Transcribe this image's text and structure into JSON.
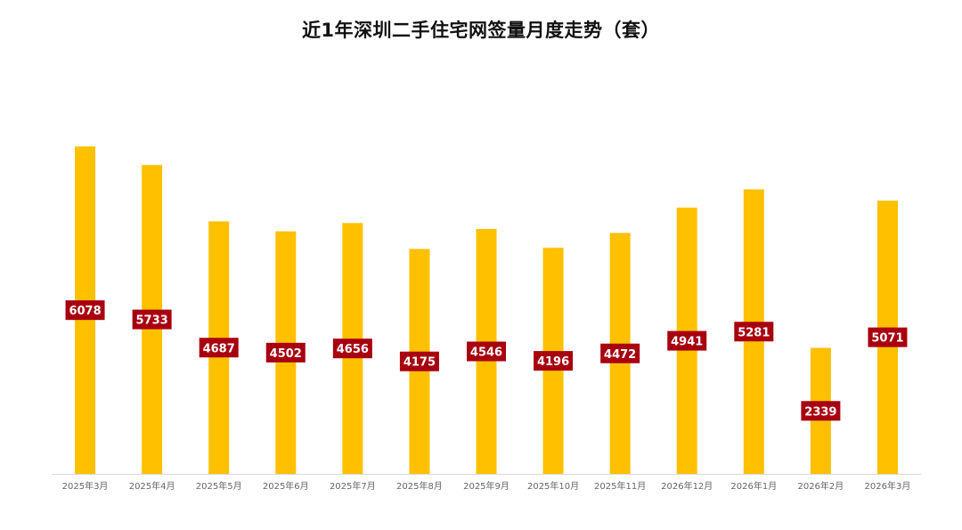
{
  "title": "近1年深圳二手住宅网签量月度走势（套）",
  "colors": {
    "bar": "#FFC000",
    "bar_edge": "#F2B200",
    "label_bg": "#A8000F",
    "label_text": "#FFFFFF",
    "axis": "#D9D9D9",
    "tick_text": "#666666"
  },
  "chart_data": {
    "type": "bar",
    "title": "近1年深圳二手住宅网签量月度走势（套）",
    "xlabel": "",
    "ylabel": "",
    "categories": [
      "2025年3月",
      "2025年4月",
      "2025年5月",
      "2025年6月",
      "2025年7月",
      "2025年8月",
      "2025年9月",
      "2025年10月",
      "2025年11月",
      "2026年12月",
      "2026年1月",
      "2026年2月",
      "2026年3月"
    ],
    "values": [
      6078,
      5733,
      4687,
      4502,
      4656,
      4175,
      4546,
      4196,
      4472,
      4941,
      5281,
      2339,
      5071
    ],
    "ylim": [
      0,
      6200
    ],
    "grid": false,
    "legend": "none"
  }
}
